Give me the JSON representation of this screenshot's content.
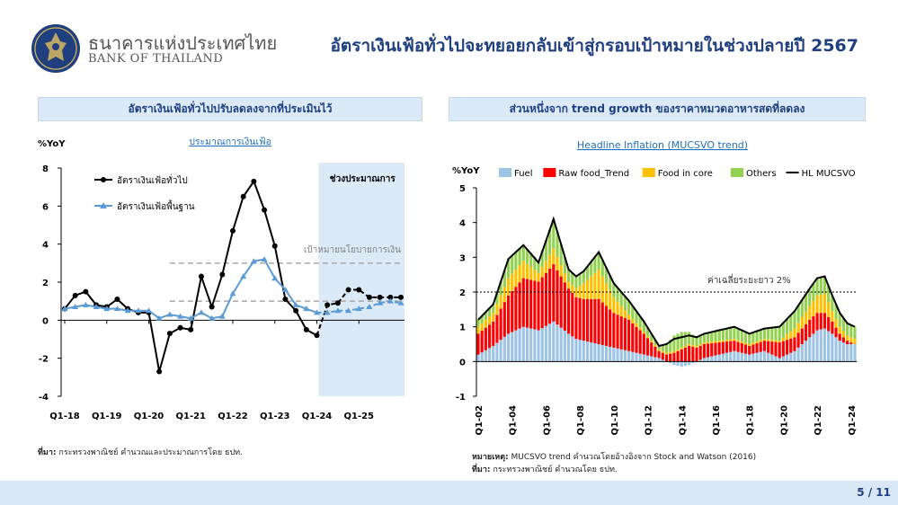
{
  "header": {
    "org_th": "ธนาคารแห่งประเทศไทย",
    "org_en": "BANK OF THAILAND",
    "title": "อัตราเงินเฟ้อทั่วไปจะทยอยกลับเข้าสู่กรอบเป้าหมายในช่วงปลายปี 2567"
  },
  "left_panel": {
    "heading": "อัตราเงินเฟ้อทั่วไปปรับลดลงจากที่ประเมินไว้",
    "source_label": "ที่มา:",
    "source_text": " กระทรวงพาณิชย์ คำนวณและประมาณการโดย ธปท."
  },
  "right_panel": {
    "heading": "ส่วนหนึ่งจาก trend growth ของราคาหมวดอาหารสดที่ลดลง",
    "note_label": "หมายเหตุ:",
    "note_text": " MUCSVO trend คำนวณโดยอ้างอิงจาก Stock and Watson (2016)",
    "source_label": "ที่มา:",
    "source_text": " กระทรวงพาณิชย์ คำนวณโดย ธปท."
  },
  "footer": {
    "page": "5 / 11"
  },
  "chart_data": [
    {
      "type": "line",
      "title": "ประมาณการเงินเฟ้อ",
      "ylabel": "%YoY",
      "ylim": [
        -4,
        8
      ],
      "yticks": [
        -4,
        -2,
        0,
        2,
        4,
        6,
        8
      ],
      "x_ticks": [
        "Q1-18",
        "Q1-19",
        "Q1-20",
        "Q1-21",
        "Q1-22",
        "Q1-23",
        "Q1-24",
        "Q1-25"
      ],
      "forecast_label": "ช่วงประมาณการ",
      "target_label": "เป้าหมายนโยบายการเงิน",
      "target_band": [
        1,
        3
      ],
      "series": [
        {
          "name": "อัตราเงินเฟ้อทั่วไป",
          "color": "#000000",
          "actual": [
            0.6,
            1.3,
            1.5,
            0.8,
            0.7,
            1.1,
            0.6,
            0.4,
            0.4,
            -2.7,
            -0.7,
            -0.4,
            -0.5,
            2.3,
            0.7,
            2.4,
            4.7,
            6.5,
            7.3,
            5.8,
            3.9,
            1.1,
            0.5,
            -0.5,
            -0.8
          ],
          "forecast": [
            0.8,
            0.9,
            1.6,
            1.6,
            1.2,
            1.2,
            1.2,
            1.2
          ]
        },
        {
          "name": "อัตราเงินเฟ้อพื้นฐาน",
          "color": "#5b9bd5",
          "actual": [
            0.6,
            0.7,
            0.8,
            0.7,
            0.6,
            0.6,
            0.5,
            0.5,
            0.5,
            0.1,
            0.3,
            0.2,
            0.1,
            0.4,
            0.1,
            0.2,
            1.4,
            2.3,
            3.1,
            3.2,
            2.2,
            1.6,
            0.8,
            0.6,
            0.4
          ],
          "forecast": [
            0.4,
            0.5,
            0.5,
            0.6,
            0.7,
            0.9,
            1.0,
            0.9
          ]
        }
      ]
    },
    {
      "type": "area",
      "title": "Headline Inflation (MUCSVO trend)",
      "ylabel": "%YoY",
      "ylim": [
        -1,
        5
      ],
      "yticks": [
        -1,
        0,
        1,
        2,
        3,
        4,
        5
      ],
      "x_ticks": [
        "Q1-02",
        "Q1-04",
        "Q1-06",
        "Q1-08",
        "Q1-10",
        "Q1-12",
        "Q1-14",
        "Q1-16",
        "Q1-18",
        "Q1-20",
        "Q1-22",
        "Q1-24"
      ],
      "average_line": 2,
      "average_label": "ค่าเฉลี่ยระยะยาว 2%",
      "legend": [
        "Fuel",
        "Raw food_Trend",
        "Food in core",
        "Others",
        "HL MUCSVO"
      ],
      "colors": {
        "Fuel": "#9dc3e6",
        "Raw food_Trend": "#ff0000",
        "Food in core": "#ffc000",
        "Others": "#92d050",
        "HL MUCSVO": "#000000"
      },
      "anchors": {
        "t": [
          0,
          4,
          8,
          12,
          16,
          20,
          24,
          26,
          28,
          32,
          36,
          40,
          44,
          48,
          50,
          52,
          54,
          56,
          58,
          60,
          64,
          68,
          72,
          76,
          80,
          84,
          88,
          90,
          92,
          94,
          96,
          98,
          100
        ],
        "fuel": [
          0.2,
          0.45,
          0.8,
          1.0,
          0.9,
          1.15,
          0.8,
          0.65,
          0.6,
          0.5,
          0.4,
          0.3,
          0.2,
          0.1,
          0.0,
          -0.1,
          -0.15,
          -0.1,
          0.0,
          0.1,
          0.2,
          0.3,
          0.2,
          0.3,
          0.1,
          0.3,
          0.7,
          0.9,
          0.95,
          0.8,
          0.6,
          0.5,
          0.5
        ],
        "rawfood": [
          0.6,
          0.7,
          1.1,
          1.4,
          1.4,
          1.65,
          1.3,
          1.2,
          1.2,
          1.3,
          1.0,
          0.9,
          0.6,
          0.2,
          0.2,
          0.25,
          0.35,
          0.45,
          0.4,
          0.4,
          0.35,
          0.3,
          0.25,
          0.3,
          0.45,
          0.4,
          0.5,
          0.5,
          0.45,
          0.35,
          0.2,
          0.1,
          0.0
        ],
        "foodcore": [
          0.2,
          0.25,
          0.5,
          0.5,
          0.25,
          0.45,
          0.2,
          0.25,
          0.45,
          0.85,
          0.45,
          0.15,
          0.05,
          0.05,
          0.05,
          0.05,
          0.05,
          0.05,
          0.05,
          0.05,
          0.05,
          0.05,
          0.05,
          0.05,
          0.05,
          0.25,
          0.4,
          0.5,
          0.55,
          0.3,
          0.2,
          0.15,
          0.15
        ],
        "others": [
          0.2,
          0.25,
          0.55,
          0.45,
          0.35,
          0.85,
          0.35,
          0.35,
          0.35,
          0.5,
          0.4,
          0.4,
          0.3,
          0.1,
          0.25,
          0.45,
          0.45,
          0.35,
          0.25,
          0.25,
          0.3,
          0.35,
          0.3,
          0.3,
          0.4,
          0.5,
          0.5,
          0.5,
          0.5,
          0.45,
          0.4,
          0.35,
          0.35
        ],
        "headline": [
          1.2,
          1.65,
          2.95,
          3.35,
          2.85,
          4.1,
          2.65,
          2.45,
          2.6,
          3.15,
          2.25,
          1.75,
          1.15,
          0.45,
          0.5,
          0.65,
          0.7,
          0.75,
          0.7,
          0.8,
          0.9,
          1.0,
          0.8,
          0.95,
          1.0,
          1.45,
          2.1,
          2.4,
          2.45,
          1.9,
          1.4,
          1.1,
          1.0
        ]
      }
    }
  ]
}
